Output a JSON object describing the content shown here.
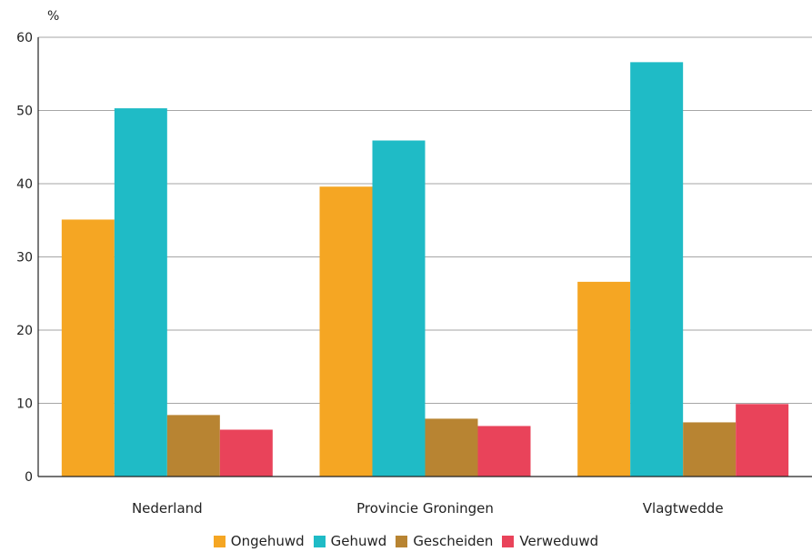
{
  "chart_data": {
    "type": "bar",
    "title": "",
    "xlabel": "",
    "ylabel": "%",
    "ylim": [
      0,
      60
    ],
    "yticks": [
      0,
      10,
      20,
      30,
      40,
      50,
      60
    ],
    "grid": true,
    "legend_position": "bottom",
    "categories": [
      "Nederland",
      "Provincie Groningen",
      "Vlagtwedde"
    ],
    "series": [
      {
        "name": "Ongehuwd",
        "color": "#f5a623",
        "values": [
          35.1,
          39.6,
          26.6
        ]
      },
      {
        "name": "Gehuwd",
        "color": "#1fbbc6",
        "values": [
          50.3,
          45.9,
          56.6
        ]
      },
      {
        "name": "Gescheiden",
        "color": "#b88432",
        "values": [
          8.4,
          7.9,
          7.4
        ]
      },
      {
        "name": "Verweduwd",
        "color": "#e9435a",
        "values": [
          6.4,
          6.9,
          9.9
        ]
      }
    ]
  }
}
